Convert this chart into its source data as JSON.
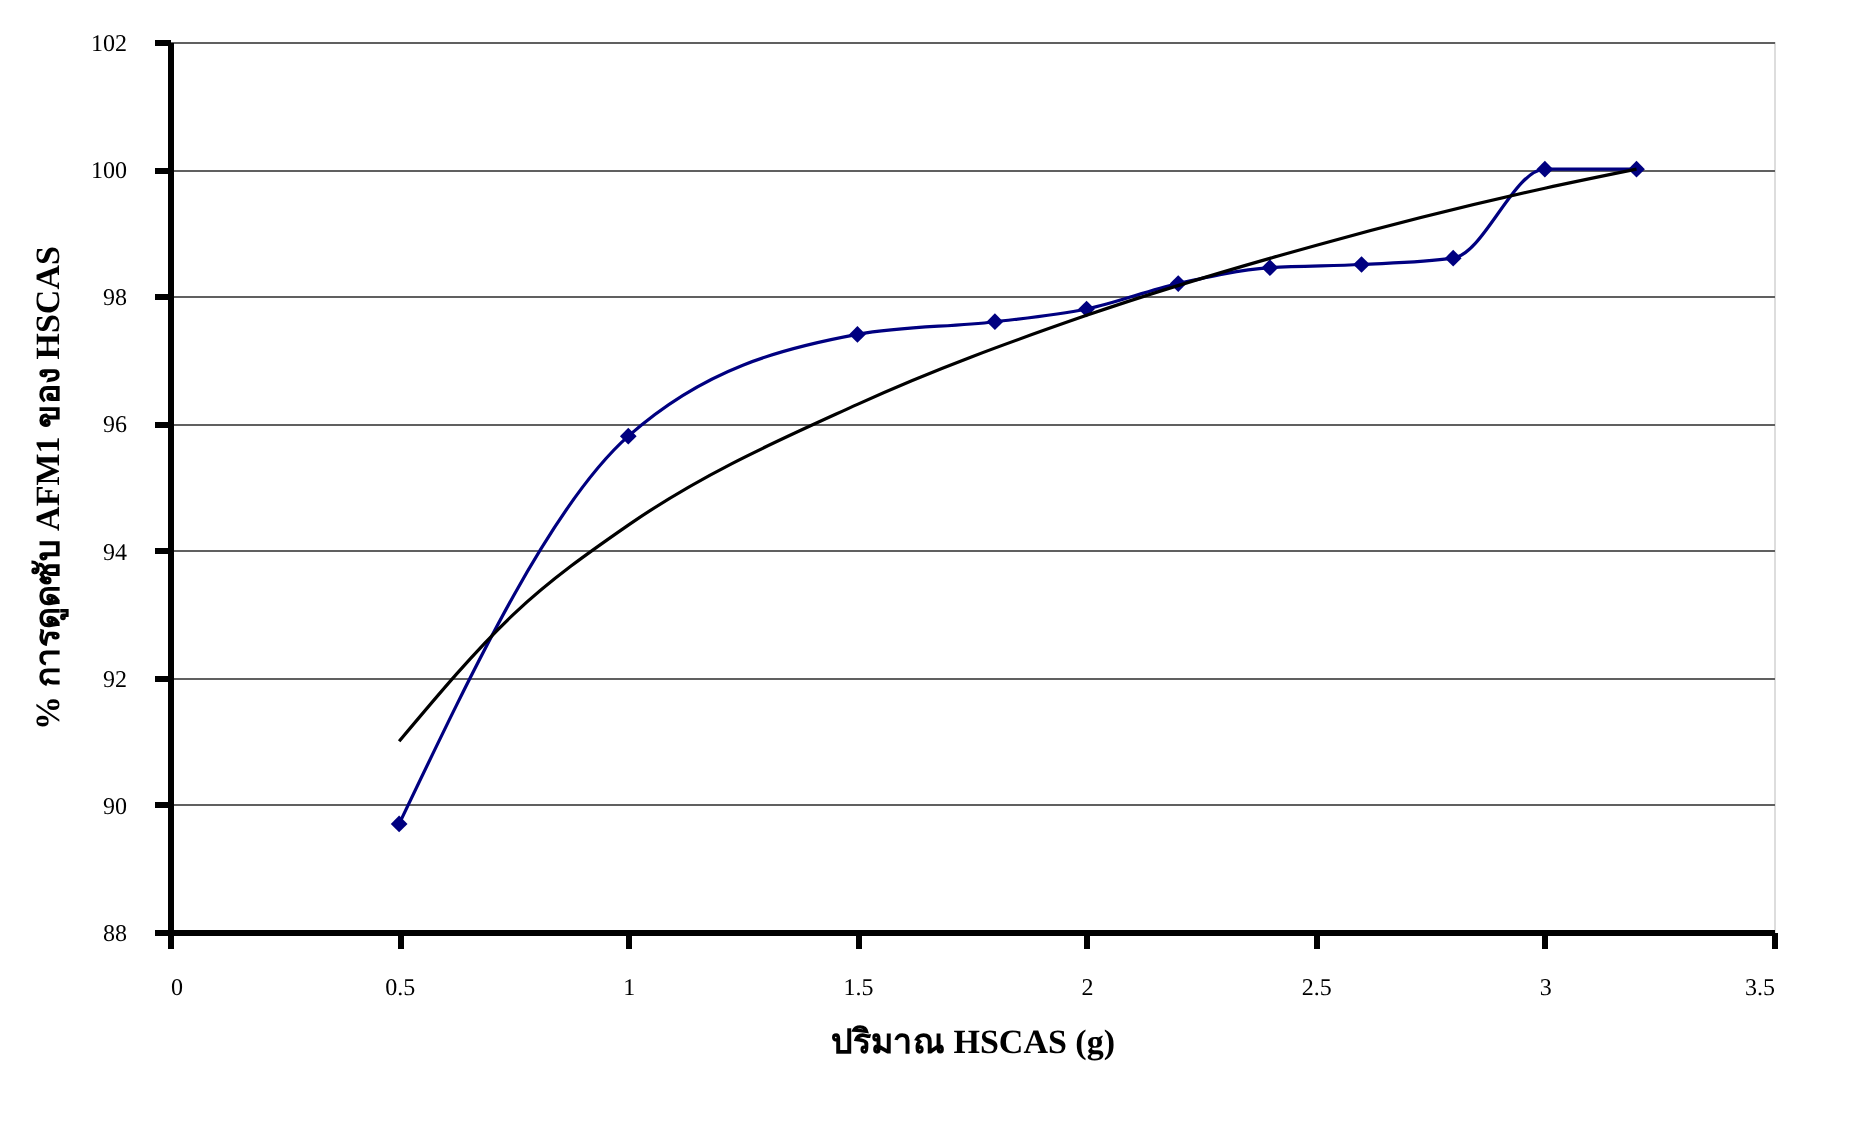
{
  "chart_data": {
    "type": "line",
    "xlabel": "ปริมาณ HSCAS (g)",
    "ylabel": "% การดูดซับ AFM1 ของ HSCAS",
    "xlim": [
      0,
      3.5
    ],
    "xticks": [
      0,
      0.5,
      1,
      1.5,
      2,
      2.5,
      3,
      3.5
    ],
    "ylim": [
      88,
      102
    ],
    "yticks": [
      88,
      90,
      92,
      94,
      96,
      98,
      100,
      102
    ],
    "grid": "y",
    "series": [
      {
        "color": "#000080",
        "marker": "diamond",
        "line_style": "solid",
        "x": [
          0.5,
          1,
          1.5,
          1.8,
          2,
          2.2,
          2.4,
          2.6,
          2.8,
          3,
          3.2
        ],
        "values": [
          89.7,
          95.8,
          97.4,
          97.6,
          97.8,
          98.2,
          98.45,
          98.5,
          98.6,
          100,
          100
        ]
      },
      {
        "color": "#000000",
        "marker": "none",
        "line_style": "solid",
        "x": [
          0.5,
          0.75,
          1,
          1.5,
          2,
          2.5,
          3,
          3.2
        ],
        "values": [
          91.0,
          93.0,
          94.4,
          96.3,
          97.7,
          98.8,
          99.7,
          100.0
        ]
      }
    ]
  }
}
